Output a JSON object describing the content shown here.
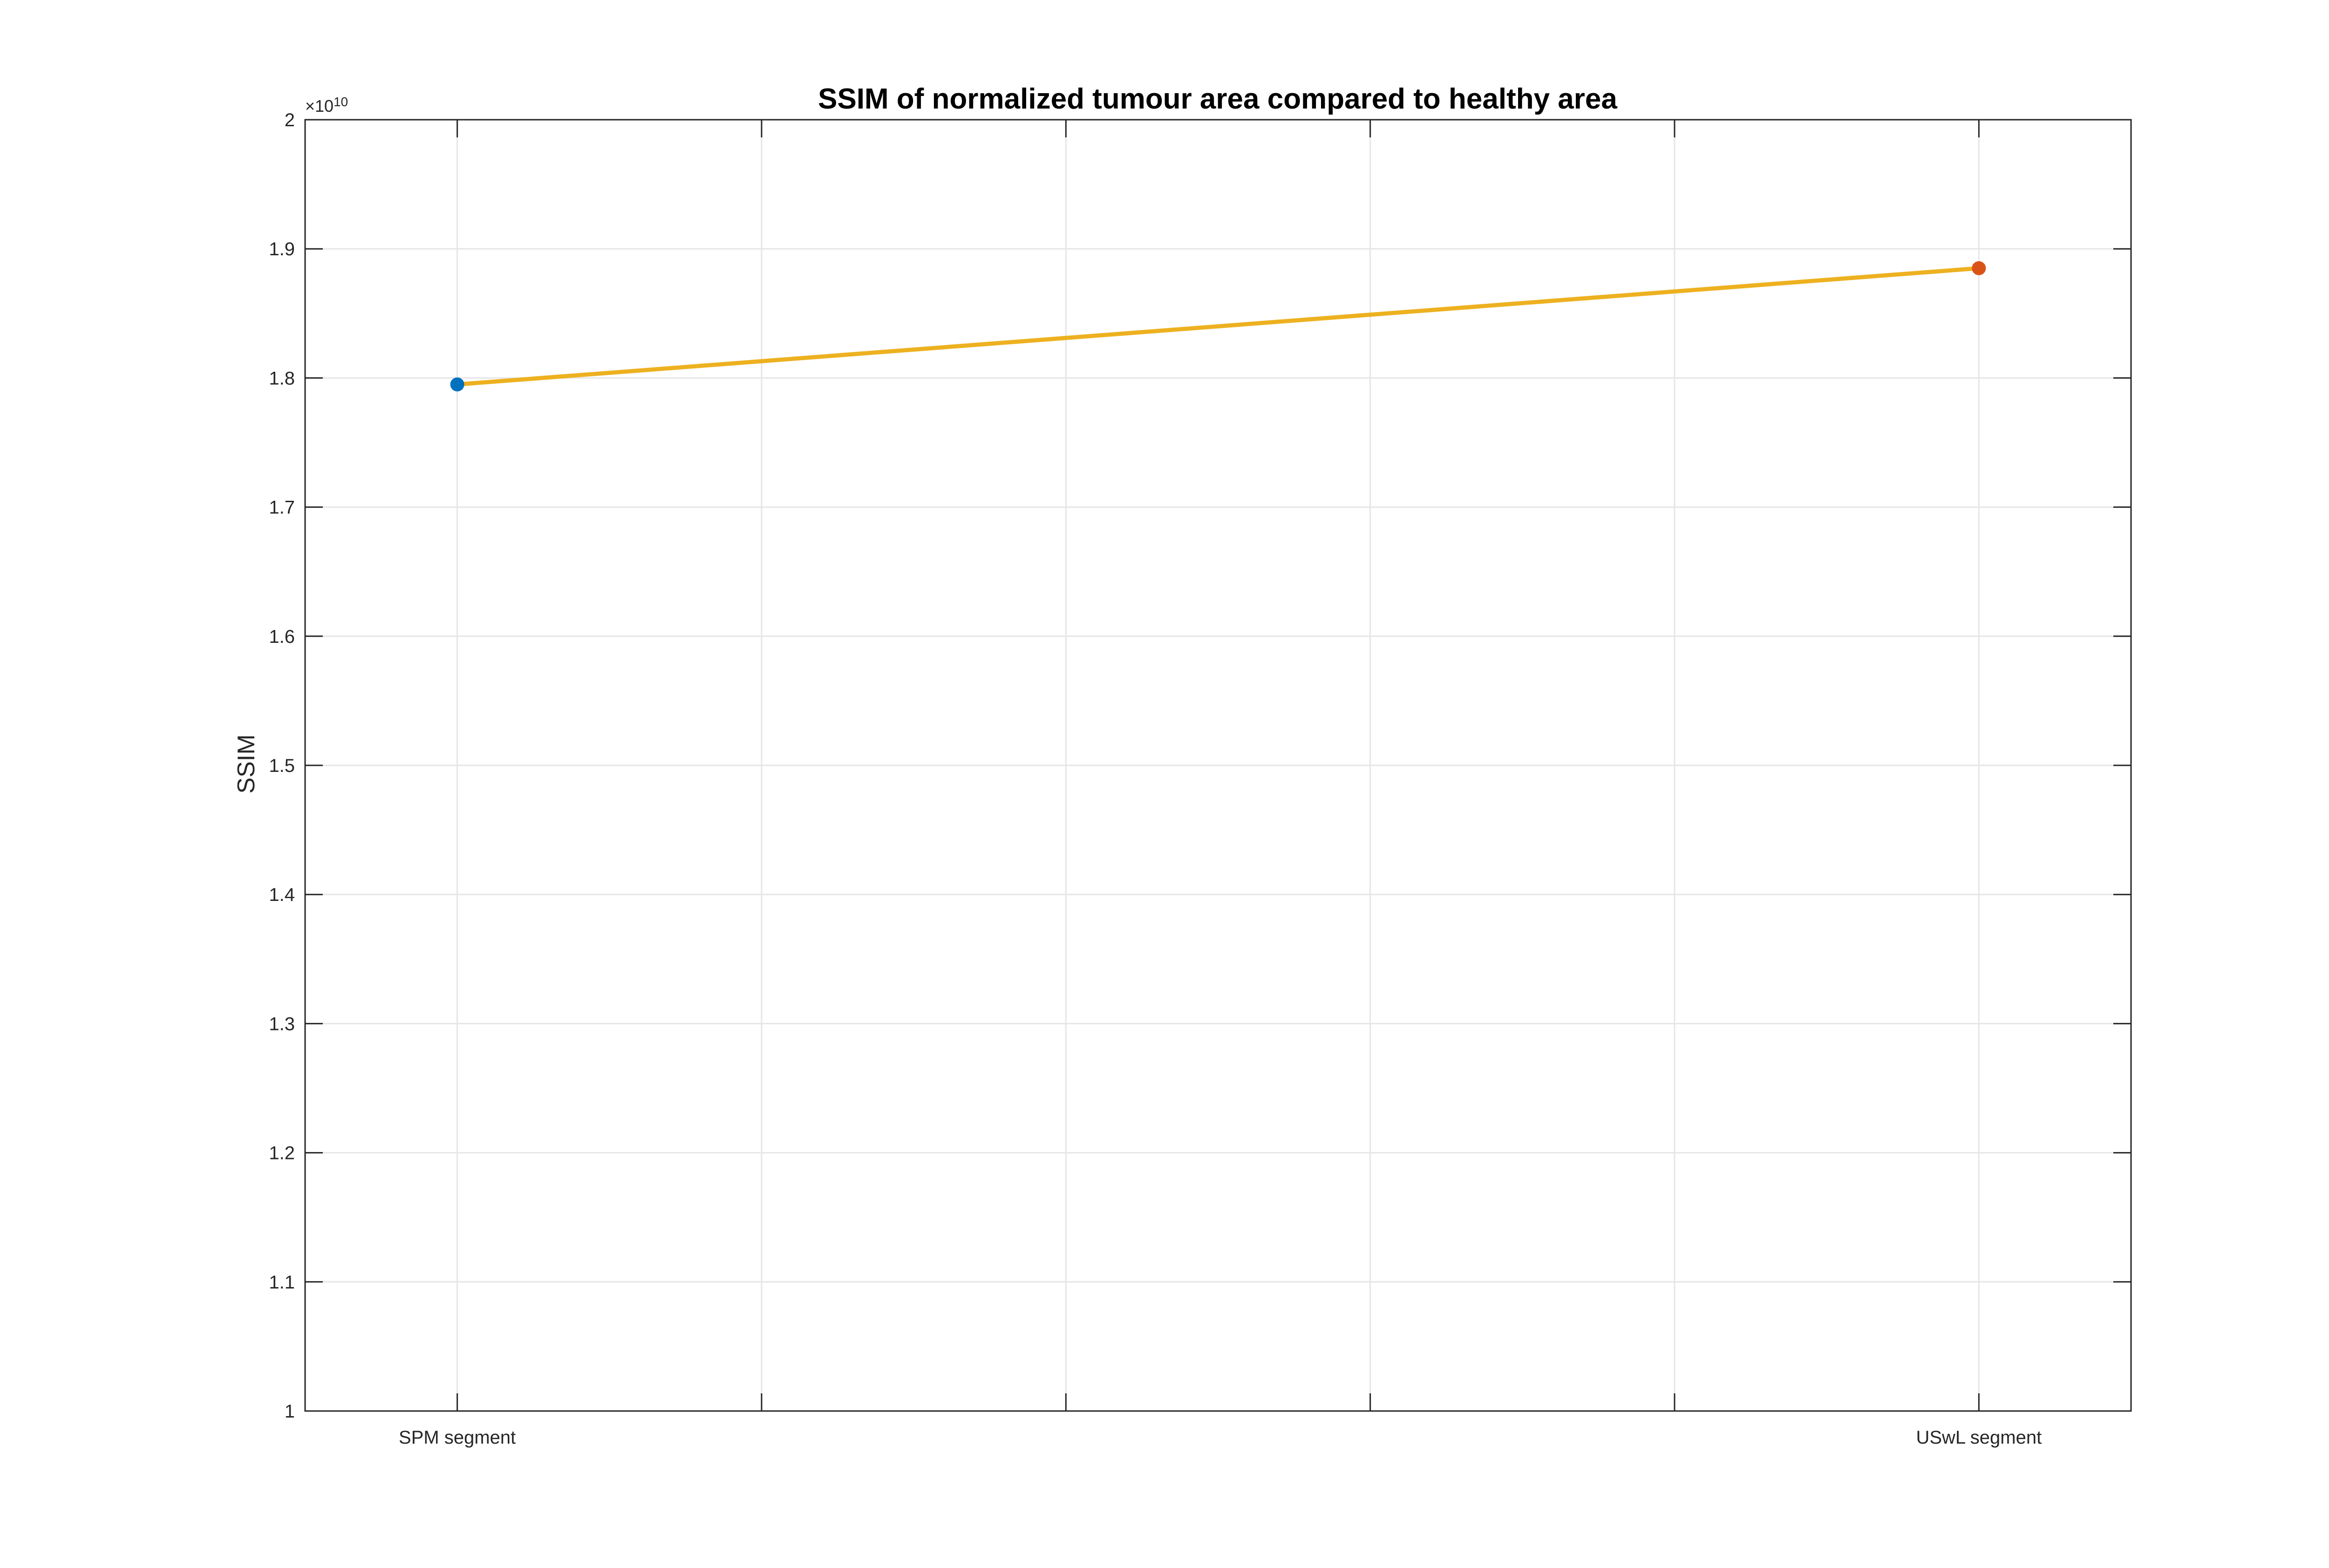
{
  "chart_data": {
    "type": "line",
    "title": "SSIM of normalized tumour area compared to healthy area",
    "xlabel": "",
    "ylabel": "SSIM",
    "x_tick_labels": [
      "SPM segment",
      "",
      "",
      "",
      "",
      "USwL segment"
    ],
    "ylim": [
      1.0,
      2.0
    ],
    "y_ticks": [
      1.0,
      1.1,
      1.2,
      1.3,
      1.4,
      1.5,
      1.6,
      1.7,
      1.8,
      1.9,
      2.0
    ],
    "y_tick_labels": [
      "1",
      "1.1",
      "1.2",
      "1.3",
      "1.4",
      "1.5",
      "1.6",
      "1.7",
      "1.8",
      "1.9",
      "2"
    ],
    "y_exponent": {
      "base": "×10",
      "power": "10"
    },
    "grid": true,
    "series": [
      {
        "values": [
          1.795,
          1.885
        ],
        "positions": [
          1,
          6
        ],
        "color": "#EDB120"
      }
    ],
    "points": [
      {
        "category": "SPM segment",
        "position": 1,
        "value": 1.795,
        "color": "#0072BD"
      },
      {
        "category": "USwL segment",
        "position": 6,
        "value": 1.885,
        "color": "#D95319"
      }
    ],
    "x_range": [
      0.5,
      6.5
    ]
  },
  "colors": {
    "axis": "#262626",
    "grid": "#e6e6e6",
    "line": "#EDB120",
    "marker_spm": "#0072BD",
    "marker_uswl": "#D95319"
  }
}
